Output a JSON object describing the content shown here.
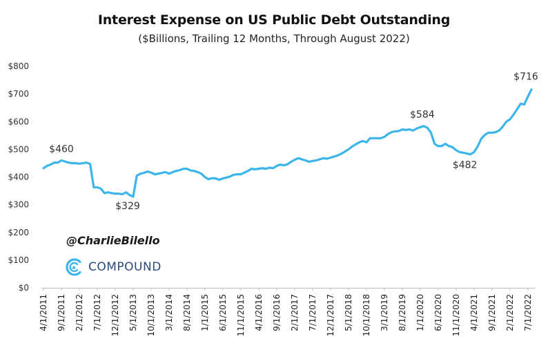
{
  "chart_data": {
    "type": "line",
    "title": "Interest Expense on US Public Debt Outstanding",
    "subtitle": "($Billions, Trailing 12 Months, Through August 2022)",
    "xlabel": "",
    "ylabel": "",
    "ylim": [
      0,
      800
    ],
    "yticks": [
      0,
      100,
      200,
      300,
      400,
      500,
      600,
      700,
      800
    ],
    "ytick_labels": [
      "$0",
      "$100",
      "$200",
      "$300",
      "$400",
      "$500",
      "$600",
      "$700",
      "$800"
    ],
    "xtick_labels": [
      "4/1/2011",
      "9/1/2011",
      "2/1/2012",
      "7/1/2012",
      "12/1/2012",
      "5/1/2013",
      "10/1/2013",
      "3/1/2014",
      "8/1/2014",
      "1/1/2015",
      "6/1/2015",
      "11/1/2015",
      "4/1/2016",
      "9/1/2016",
      "2/1/2017",
      "7/1/2017",
      "12/1/2017",
      "5/1/2018",
      "10/1/2018",
      "3/1/2019",
      "8/1/2019",
      "1/1/2020",
      "6/1/2020",
      "11/1/2020",
      "4/1/2021",
      "9/1/2021",
      "2/1/2022",
      "7/1/2022"
    ],
    "grid": false,
    "legend": "none",
    "line_color": "#3bb5ea",
    "series": [
      {
        "x": [
          "2011-04",
          "2011-05",
          "2011-06",
          "2011-07",
          "2011-08",
          "2011-09",
          "2011-10",
          "2011-11",
          "2011-12",
          "2012-01",
          "2012-02",
          "2012-03",
          "2012-04",
          "2012-05",
          "2012-06",
          "2012-07",
          "2012-08",
          "2012-09",
          "2012-10",
          "2012-11",
          "2012-12",
          "2013-01",
          "2013-02",
          "2013-03",
          "2013-04",
          "2013-05",
          "2013-06",
          "2013-07",
          "2013-08",
          "2013-09",
          "2013-10",
          "2013-11",
          "2013-12",
          "2014-01",
          "2014-02",
          "2014-03",
          "2014-04",
          "2014-05",
          "2014-06",
          "2014-07",
          "2014-08",
          "2014-09",
          "2014-10",
          "2014-11",
          "2014-12",
          "2015-01",
          "2015-02",
          "2015-03",
          "2015-04",
          "2015-05",
          "2015-06",
          "2015-07",
          "2015-08",
          "2015-09",
          "2015-10",
          "2015-11",
          "2015-12",
          "2016-01",
          "2016-02",
          "2016-03",
          "2016-04",
          "2016-05",
          "2016-06",
          "2016-07",
          "2016-08",
          "2016-09",
          "2016-10",
          "2016-11",
          "2016-12",
          "2017-01",
          "2017-02",
          "2017-03",
          "2017-04",
          "2017-05",
          "2017-06",
          "2017-07",
          "2017-08",
          "2017-09",
          "2017-10",
          "2017-11",
          "2017-12",
          "2018-01",
          "2018-02",
          "2018-03",
          "2018-04",
          "2018-05",
          "2018-06",
          "2018-07",
          "2018-08",
          "2018-09",
          "2018-10",
          "2018-11",
          "2018-12",
          "2019-01",
          "2019-02",
          "2019-03",
          "2019-04",
          "2019-05",
          "2019-06",
          "2019-07",
          "2019-08",
          "2019-09",
          "2019-10",
          "2019-11",
          "2019-12",
          "2020-01",
          "2020-02",
          "2020-03",
          "2020-04",
          "2020-05",
          "2020-06",
          "2020-07",
          "2020-08",
          "2020-09",
          "2020-10",
          "2020-11",
          "2020-12",
          "2021-01",
          "2021-02",
          "2021-03",
          "2021-04",
          "2021-05",
          "2021-06",
          "2021-07",
          "2021-08",
          "2021-09",
          "2021-10",
          "2021-11",
          "2021-12",
          "2022-01",
          "2022-02",
          "2022-03",
          "2022-04",
          "2022-05",
          "2022-06",
          "2022-07",
          "2022-08"
        ],
        "values": [
          432,
          440,
          445,
          452,
          452,
          460,
          456,
          452,
          450,
          450,
          448,
          450,
          452,
          447,
          363,
          363,
          358,
          342,
          345,
          342,
          340,
          340,
          338,
          345,
          335,
          329,
          405,
          412,
          415,
          420,
          416,
          410,
          412,
          415,
          418,
          412,
          418,
          422,
          425,
          430,
          430,
          424,
          422,
          418,
          412,
          400,
          392,
          396,
          395,
          390,
          395,
          398,
          402,
          408,
          410,
          410,
          416,
          422,
          430,
          428,
          430,
          432,
          430,
          434,
          432,
          440,
          445,
          442,
          446,
          455,
          462,
          468,
          464,
          460,
          455,
          458,
          460,
          464,
          468,
          466,
          470,
          474,
          478,
          484,
          492,
          500,
          510,
          518,
          525,
          530,
          525,
          540,
          540,
          540,
          540,
          545,
          555,
          562,
          565,
          566,
          572,
          570,
          572,
          568,
          575,
          580,
          584,
          578,
          560,
          520,
          512,
          512,
          520,
          512,
          508,
          497,
          490,
          488,
          485,
          482,
          490,
          510,
          538,
          552,
          560,
          560,
          562,
          568,
          582,
          600,
          608,
          625,
          645,
          665,
          662,
          690,
          716
        ]
      }
    ],
    "annotations": [
      {
        "text": "$460",
        "x": "2011-09",
        "y": 460
      },
      {
        "text": "$329",
        "x": "2013-05",
        "y": 329
      },
      {
        "text": "$584",
        "x": "2020-01",
        "y": 584
      },
      {
        "text": "$482",
        "x": "2021-03",
        "y": 482
      },
      {
        "text": "$716",
        "x": "2022-08",
        "y": 716
      }
    ]
  },
  "branding": {
    "handle": "@CharlieBilello",
    "logo_text": "COMPOUND",
    "logo_icon": "compound-logo-icon",
    "logo_color": "#3bb5ea"
  }
}
